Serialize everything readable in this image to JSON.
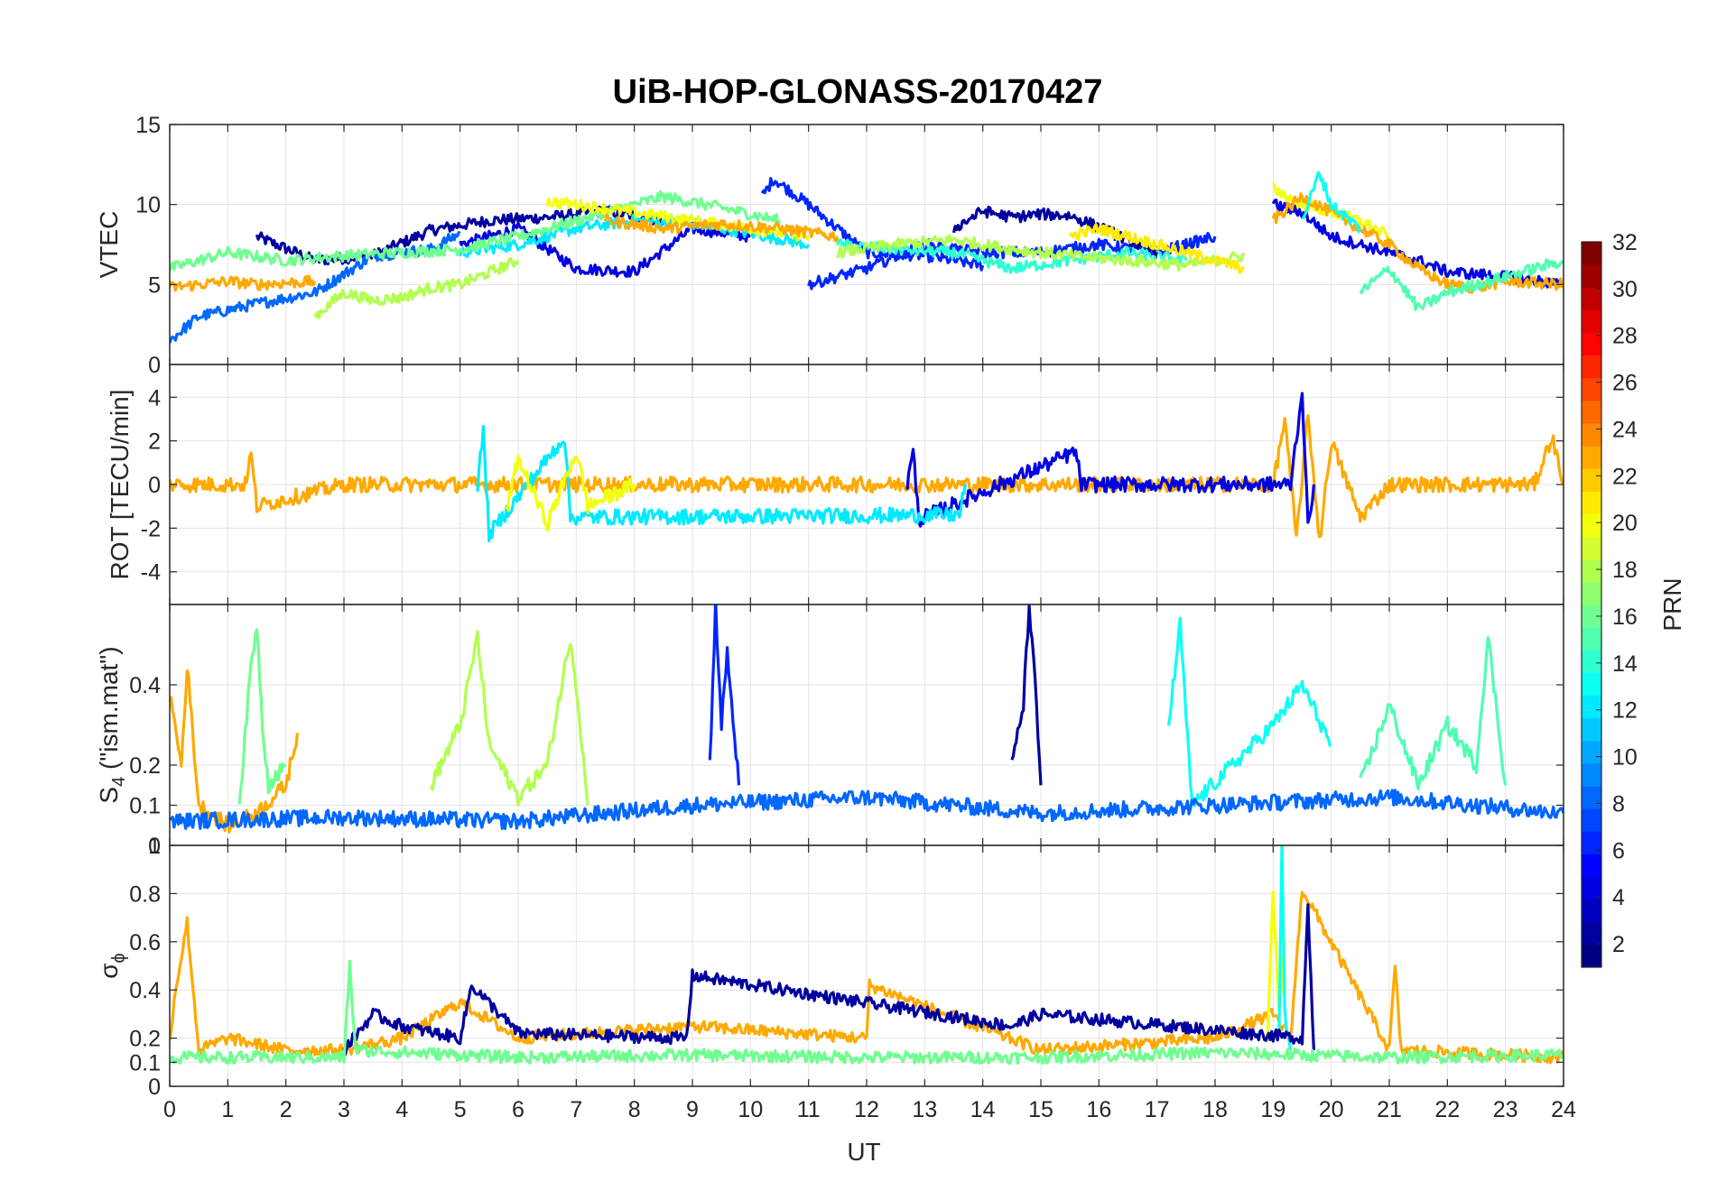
{
  "figure": {
    "title": "UiB-HOP-GLONASS-20170427",
    "xlabel": "UT"
  },
  "chart_data": [
    {
      "type": "line",
      "panel": "VTEC",
      "ylabel": "VTEC",
      "xlim": [
        0,
        24
      ],
      "ylim": [
        0,
        15
      ],
      "yticks": [
        "0",
        "5",
        "10",
        "15"
      ],
      "grid": true,
      "series": [
        {
          "color_prn": 2,
          "x": [
            1.5,
            2.5,
            3.5,
            4.5,
            5.5,
            6.5,
            7.5,
            8.5
          ],
          "values": [
            8.0,
            6.5,
            6.8,
            8.4,
            9.0,
            9.2,
            9.6,
            9.0
          ]
        },
        {
          "color_prn": 4,
          "x": [
            5.0,
            6.0,
            7.0,
            8.0,
            9.0,
            10.0
          ],
          "values": [
            7.5,
            8.5,
            6.0,
            5.8,
            8.5,
            8.0
          ]
        },
        {
          "color_prn": 6,
          "x": [
            10.2,
            10.4,
            11.0,
            12.0,
            13.0,
            14.0
          ],
          "values": [
            10.5,
            11.6,
            10.0,
            7.0,
            6.8,
            6.2
          ]
        },
        {
          "color_prn": 8,
          "x": [
            0.0,
            0.5,
            1.5,
            2.5,
            3.5,
            4.5,
            5.0
          ],
          "values": [
            1.5,
            3.0,
            3.8,
            4.5,
            6.8,
            7.2,
            8.2
          ]
        },
        {
          "color_prn": 12,
          "x": [
            5.0,
            6.0,
            7.0,
            8.0,
            9.0,
            10.0,
            11.0
          ],
          "values": [
            7.0,
            7.5,
            8.5,
            9.0,
            8.8,
            8.2,
            7.5
          ]
        },
        {
          "color_prn": 16,
          "x": [
            0.0,
            1.0,
            2.0,
            3.0,
            4.0,
            5.0,
            6.0,
            7.0,
            8.0,
            8.5,
            9.5,
            10.5
          ],
          "values": [
            6.0,
            7.0,
            6.5,
            6.8,
            7.0,
            7.2,
            8.0,
            9.0,
            10.0,
            10.5,
            9.8,
            9.0
          ]
        },
        {
          "color_prn": 18,
          "x": [
            2.5,
            3.0,
            3.5,
            4.0,
            4.5,
            5.0,
            6.0
          ],
          "values": [
            3.0,
            4.5,
            4.0,
            4.2,
            4.8,
            5.0,
            6.5
          ]
        },
        {
          "color_prn": 20,
          "x": [
            6.5,
            7.0,
            8.0,
            9.0,
            10.0,
            11.0
          ],
          "values": [
            10.2,
            10.0,
            9.5,
            9.0,
            8.5,
            8.0
          ]
        },
        {
          "color_prn": 23,
          "x": [
            0.0,
            0.5,
            1.0,
            1.5,
            2.5
          ],
          "values": [
            4.8,
            5.0,
            5.2,
            5.0,
            5.2
          ]
        },
        {
          "color_prn": 23,
          "x": [
            7.5,
            8.5,
            9.5,
            10.5,
            11.5
          ],
          "values": [
            9.0,
            8.5,
            8.8,
            8.5,
            8.0
          ]
        },
        {
          "color_prn": 6,
          "x": [
            11.0,
            12.0,
            13.0,
            14.0,
            15.0,
            16.0,
            17.0,
            18.0
          ],
          "values": [
            5.0,
            6.0,
            7.5,
            7.0,
            7.0,
            7.5,
            7.0,
            8.0
          ]
        },
        {
          "color_prn": 14,
          "x": [
            11.5,
            12.5,
            13.5,
            14.5,
            15.5,
            16.5,
            17.5
          ],
          "values": [
            7.5,
            7.2,
            7.0,
            6.0,
            6.5,
            7.0,
            6.5
          ]
        },
        {
          "color_prn": 2,
          "x": [
            13.5,
            14.0,
            14.5,
            15.0,
            15.5,
            16.0,
            17.0
          ],
          "values": [
            8.5,
            9.6,
            9.2,
            9.4,
            9.3,
            8.6,
            7.0
          ]
        },
        {
          "color_prn": 18,
          "x": [
            11.5,
            12.5,
            13.5,
            14.5,
            15.5,
            16.5,
            17.5,
            18.5
          ],
          "values": [
            7.0,
            7.5,
            7.8,
            7.2,
            6.8,
            6.5,
            6.2,
            6.8
          ]
        },
        {
          "color_prn": 21,
          "x": [
            15.5,
            16.0,
            16.5,
            17.0,
            17.5,
            18.0,
            18.5
          ],
          "values": [
            8.0,
            8.5,
            8.0,
            7.5,
            7.0,
            6.5,
            6.0
          ]
        },
        {
          "color_prn": 4,
          "x": [
            19.0,
            19.5,
            20.0,
            20.5,
            21.0,
            21.5,
            22.0,
            23.0,
            24.0
          ],
          "values": [
            10.0,
            9.5,
            8.0,
            7.5,
            7.0,
            6.5,
            5.8,
            5.5,
            5.0
          ]
        },
        {
          "color_prn": 20,
          "x": [
            19.0,
            19.5,
            20.0,
            20.5,
            21.0
          ],
          "values": [
            11.0,
            10.0,
            9.5,
            9.0,
            8.0
          ]
        },
        {
          "color_prn": 23,
          "x": [
            19.0,
            19.5,
            20.0,
            20.5,
            21.0,
            21.5,
            22.0,
            22.5,
            23.0,
            24.0
          ],
          "values": [
            9.0,
            10.5,
            9.5,
            8.5,
            7.5,
            6.0,
            5.0,
            4.8,
            5.2,
            5.0
          ]
        },
        {
          "color_prn": 15,
          "x": [
            20.5,
            21.0,
            21.5,
            22.0,
            23.0,
            24.0
          ],
          "values": [
            4.5,
            6.0,
            3.5,
            4.5,
            5.5,
            6.5
          ]
        },
        {
          "color_prn": 13,
          "x": [
            19.5,
            19.8,
            20.0,
            20.5
          ],
          "values": [
            9.0,
            12.0,
            10.0,
            8.5
          ]
        }
      ]
    },
    {
      "type": "line",
      "panel": "ROT",
      "ylabel": "ROT [TECU/min]",
      "xlim": [
        0,
        24
      ],
      "ylim": [
        -5.5,
        5.5
      ],
      "yticks": [
        "-4",
        "-2",
        "0",
        "2",
        "4"
      ],
      "grid": true,
      "series": [
        {
          "color_prn": 23,
          "x": [
            0,
            1.3,
            1.4,
            1.5,
            3,
            4,
            5,
            6,
            7,
            8,
            9,
            10,
            12,
            14,
            16,
            18,
            19,
            19.2,
            19.4,
            19.6,
            19.8,
            20,
            20.5,
            21,
            22,
            23.5,
            23.8,
            24
          ],
          "values": [
            0,
            0,
            1.4,
            -1.0,
            0,
            0,
            0,
            0,
            0,
            0,
            0,
            0,
            0,
            0,
            0,
            0,
            0,
            3.0,
            -2.5,
            3.2,
            -2.6,
            2.0,
            -1.5,
            0,
            0,
            0,
            2.2,
            0
          ]
        },
        {
          "color_prn": 4,
          "x": [
            12.7,
            12.8,
            12.9,
            15.6,
            15.7,
            19.3,
            19.5,
            19.6,
            19.7
          ],
          "values": [
            0,
            1.5,
            -1.6,
            1.5,
            0,
            0,
            4.3,
            -2.0,
            0
          ]
        },
        {
          "color_prn": 12,
          "x": [
            5.3,
            5.4,
            5.5,
            6.8,
            6.9,
            13.6,
            13.7
          ],
          "values": [
            0,
            2.4,
            -2.3,
            2.2,
            -1.5,
            -1.4,
            0
          ]
        },
        {
          "color_prn": 20,
          "x": [
            5.8,
            6.0,
            6.5,
            7.0,
            7.2,
            8.0
          ],
          "values": [
            -1.2,
            1.2,
            -1.8,
            1.5,
            -1.0,
            0
          ]
        }
      ]
    },
    {
      "type": "line",
      "panel": "S4",
      "ylabel_main": "S",
      "ylabel_sub": "4",
      "ylabel_rest": " (\"ism.mat\")",
      "xlim": [
        0,
        24
      ],
      "ylim": [
        0,
        0.6
      ],
      "yticks": [
        "0",
        "0.1",
        "0.2",
        "0.4"
      ],
      "grid": true,
      "series": [
        {
          "color_prn": 23,
          "x": [
            0,
            0.2,
            0.3,
            0.5,
            1.0,
            1.5,
            2.0,
            2.2
          ],
          "values": [
            0.38,
            0.2,
            0.45,
            0.1,
            0.05,
            0.08,
            0.15,
            0.28
          ]
        },
        {
          "color_prn": 16,
          "x": [
            1.2,
            1.4,
            1.5,
            1.6,
            1.7,
            2.0
          ],
          "values": [
            0.1,
            0.45,
            0.55,
            0.3,
            0.15,
            0.2
          ]
        },
        {
          "color_prn": 18,
          "x": [
            4.5,
            5.0,
            5.3,
            5.5,
            6.0,
            6.5,
            6.9,
            7.0,
            7.2
          ],
          "values": [
            0.15,
            0.3,
            0.52,
            0.25,
            0.12,
            0.2,
            0.52,
            0.4,
            0.1
          ]
        },
        {
          "color_prn": 6,
          "x": [
            9.3,
            9.4,
            9.5,
            9.6,
            9.8
          ],
          "values": [
            0.2,
            0.6,
            0.3,
            0.48,
            0.15
          ]
        },
        {
          "color_prn": 2,
          "x": [
            14.5,
            14.7,
            14.8,
            14.9,
            15.0
          ],
          "values": [
            0.2,
            0.35,
            0.6,
            0.4,
            0.15
          ]
        },
        {
          "color_prn": 13,
          "x": [
            17.2,
            17.4,
            17.6,
            19.0,
            19.5,
            20.0
          ],
          "values": [
            0.3,
            0.55,
            0.1,
            0.3,
            0.4,
            0.25
          ]
        },
        {
          "color_prn": 15,
          "x": [
            20.5,
            21.0,
            21.5,
            22.0,
            22.5,
            22.7,
            23.0
          ],
          "values": [
            0.15,
            0.35,
            0.15,
            0.3,
            0.2,
            0.52,
            0.15
          ]
        },
        {
          "color_prn": 8,
          "x": [
            0,
            3,
            6,
            9,
            12,
            15,
            18,
            21,
            24
          ],
          "values": [
            0.06,
            0.07,
            0.06,
            0.1,
            0.12,
            0.08,
            0.1,
            0.12,
            0.08
          ]
        }
      ]
    },
    {
      "type": "line",
      "panel": "sigma_phi",
      "ylabel_main": "σ",
      "ylabel_sub": "ϕ",
      "xlim": [
        0,
        24
      ],
      "ylim": [
        0,
        1
      ],
      "yticks": [
        "0",
        "0.1",
        "0.2",
        "0.4",
        "0.6",
        "0.8",
        "1"
      ],
      "grid": true,
      "series": [
        {
          "color_prn": 23,
          "x": [
            0,
            0.1,
            0.3,
            0.5,
            1.0,
            2.0,
            3.0,
            4.0,
            5.0,
            6.0,
            9.0,
            12.0,
            12.05,
            15.0,
            18.0,
            19.0,
            19.3,
            19.5,
            21.0,
            21.1,
            21.2,
            24.0
          ],
          "values": [
            0.2,
            0.4,
            0.68,
            0.15,
            0.2,
            0.15,
            0.15,
            0.2,
            0.35,
            0.2,
            0.25,
            0.2,
            0.42,
            0.15,
            0.2,
            0.3,
            0.2,
            0.82,
            0.15,
            0.5,
            0.15,
            0.12
          ]
        },
        {
          "color_prn": 20,
          "x": [
            18.9,
            19.0,
            19.1,
            19.2
          ],
          "values": [
            0.2,
            0.82,
            0.3,
            0.6
          ]
        },
        {
          "color_prn": 13,
          "x": [
            19.1,
            19.15,
            19.2,
            19.3
          ],
          "values": [
            0.2,
            1.0,
            0.3,
            0.15
          ]
        },
        {
          "color_prn": 2,
          "x": [
            3.0,
            3.5,
            4.0,
            5.0,
            5.2,
            6.0,
            8.9,
            9.0,
            14.5,
            15.0,
            19.5,
            19.6,
            19.7
          ],
          "values": [
            0.15,
            0.3,
            0.25,
            0.2,
            0.42,
            0.22,
            0.2,
            0.46,
            0.25,
            0.3,
            0.2,
            0.75,
            0.15
          ]
        },
        {
          "color_prn": 16,
          "x": [
            0,
            3,
            3.1,
            3.2,
            6,
            9,
            12,
            15,
            18,
            21,
            24
          ],
          "values": [
            0.12,
            0.12,
            0.5,
            0.15,
            0.12,
            0.13,
            0.12,
            0.12,
            0.14,
            0.12,
            0.13
          ]
        }
      ]
    }
  ],
  "x_ticks": [
    "0",
    "1",
    "2",
    "3",
    "4",
    "5",
    "6",
    "7",
    "8",
    "9",
    "10",
    "11",
    "12",
    "13",
    "14",
    "15",
    "16",
    "17",
    "18",
    "19",
    "20",
    "21",
    "22",
    "23",
    "24"
  ],
  "colorbar": {
    "label": "PRN",
    "range": [
      1,
      32
    ],
    "ticks": [
      "2",
      "4",
      "6",
      "8",
      "10",
      "12",
      "14",
      "16",
      "18",
      "20",
      "22",
      "24",
      "26",
      "28",
      "30",
      "32"
    ],
    "colormap": "jet"
  }
}
